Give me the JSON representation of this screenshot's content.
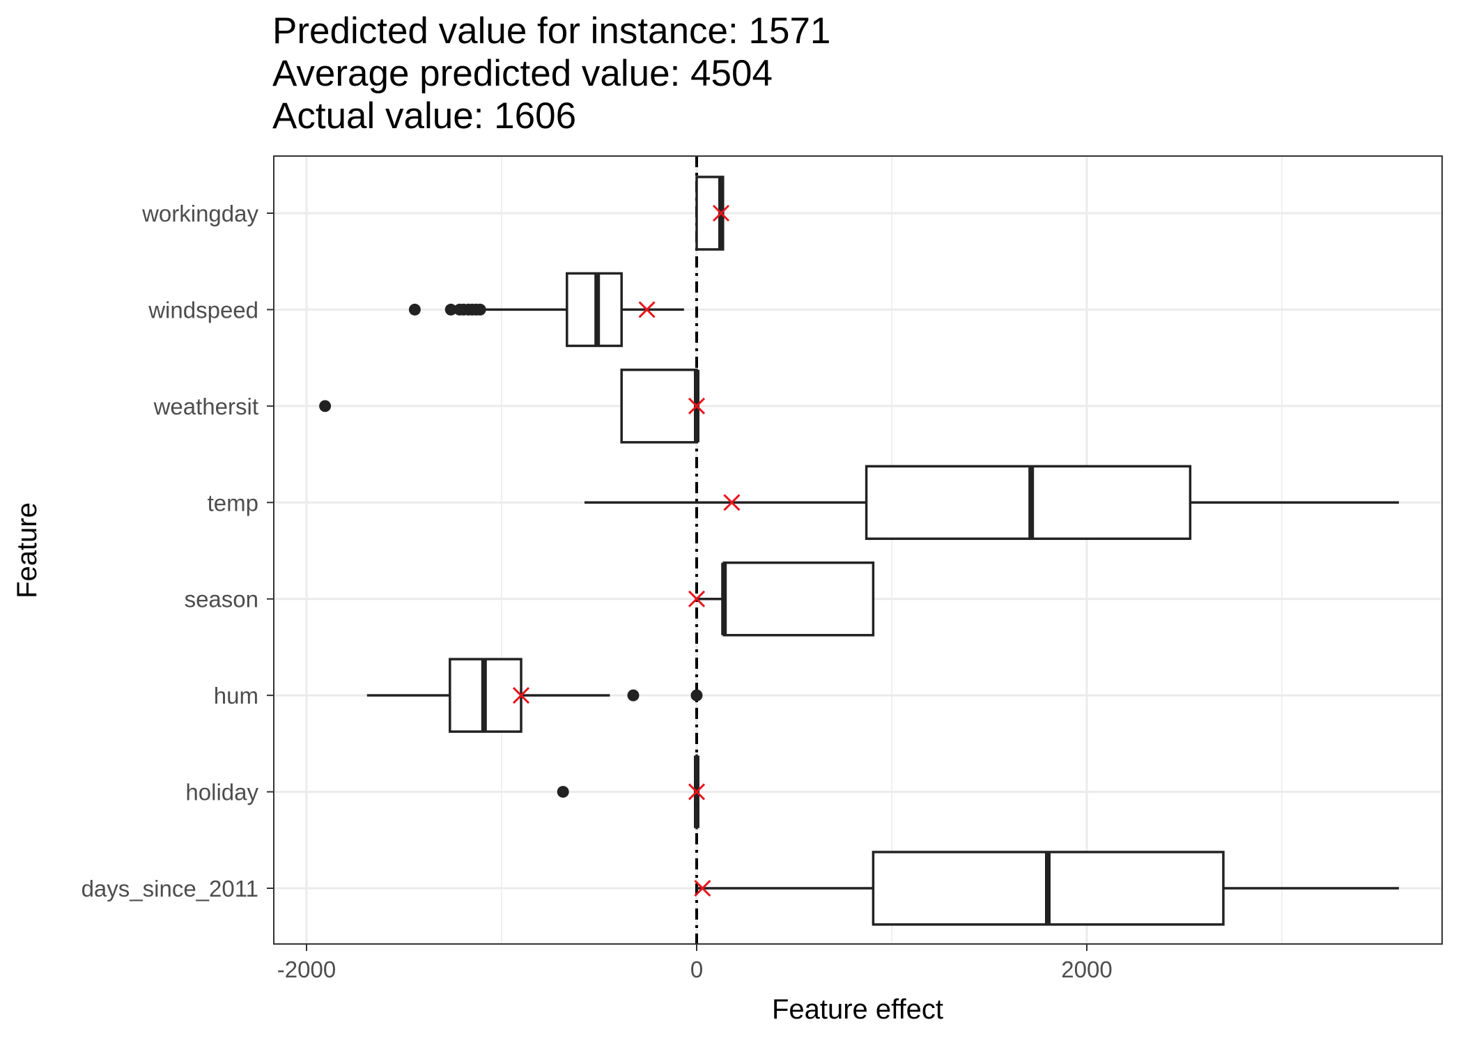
{
  "chart_data": {
    "type": "boxplot",
    "title_lines": [
      "Predicted value for instance: 1571",
      "Average predicted value: 4504",
      "Actual value: 1606"
    ],
    "xlabel": "Feature effect",
    "ylabel": "Feature",
    "xlim": [
      -2000,
      3800
    ],
    "x_ticks": [
      -2000,
      0,
      2000
    ],
    "x_tick_labels": [
      "-2000",
      "0",
      "2000"
    ],
    "x_minor_ticks": [
      -1000,
      1000,
      3000
    ],
    "reference_line_x": 0,
    "grid": true,
    "colors": {
      "box": "#222222",
      "instance_marker": "#e8141c",
      "grid": "#ebebeb",
      "reference_line": "#000000"
    },
    "categories": [
      "workingday",
      "windspeed",
      "weathersit",
      "temp",
      "season",
      "hum",
      "holiday",
      "days_since_2011"
    ],
    "boxes": [
      {
        "feature": "workingday",
        "whisker_low": 0,
        "q1": 0,
        "median": 125,
        "q3": 135,
        "whisker_high": 135,
        "outliers": [],
        "instance_effect": 125
      },
      {
        "feature": "windspeed",
        "whisker_low": -1100,
        "q1": -665,
        "median": -510,
        "q3": -385,
        "whisker_high": -65,
        "outliers": [
          -1445,
          -1260,
          -1215,
          -1195,
          -1170,
          -1150,
          -1130,
          -1110
        ],
        "instance_effect": -255
      },
      {
        "feature": "weathersit",
        "whisker_low": -385,
        "q1": -385,
        "median": 0,
        "q3": 0,
        "whisker_high": 0,
        "outliers": [
          -1905
        ],
        "instance_effect": 0
      },
      {
        "feature": "temp",
        "whisker_low": -575,
        "q1": 870,
        "median": 1715,
        "q3": 2530,
        "whisker_high": 3600,
        "outliers": [],
        "instance_effect": 180
      },
      {
        "feature": "season",
        "whisker_low": 0,
        "q1": 140,
        "median": 140,
        "q3": 905,
        "whisker_high": 905,
        "outliers": [],
        "instance_effect": 0
      },
      {
        "feature": "hum",
        "whisker_low": -1690,
        "q1": -1265,
        "median": -1090,
        "q3": -900,
        "whisker_high": -445,
        "outliers": [
          -325,
          0
        ],
        "instance_effect": -900
      },
      {
        "feature": "holiday",
        "whisker_low": 0,
        "q1": 0,
        "median": 0,
        "q3": 0,
        "whisker_high": 0,
        "outliers": [
          -685
        ],
        "instance_effect": 0
      },
      {
        "feature": "days_since_2011",
        "whisker_low": 0,
        "q1": 905,
        "median": 1800,
        "q3": 2700,
        "whisker_high": 3600,
        "outliers": [],
        "instance_effect": 30
      }
    ]
  }
}
